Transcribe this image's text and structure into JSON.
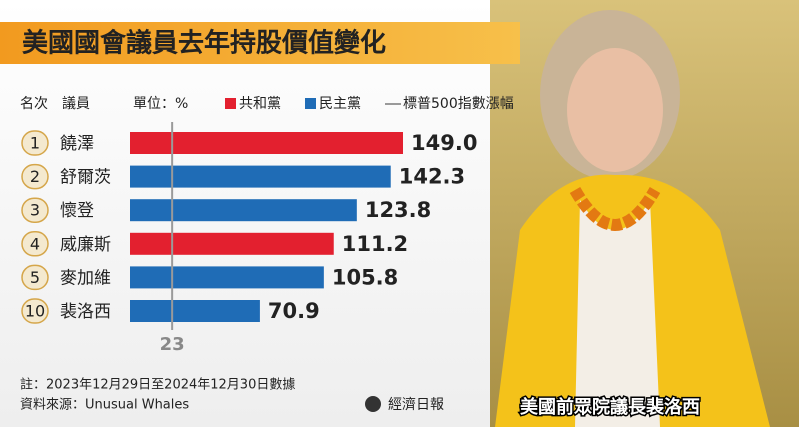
{
  "chart_data": {
    "type": "bar",
    "title": "美國國會議員去年持股價值變化",
    "rank_header": "名次",
    "name_header": "議員",
    "unit": "單位：%",
    "legend": [
      {
        "name": "共和黨",
        "color": "#e3202f"
      },
      {
        "name": "民主黨",
        "color": "#1f6cb6"
      }
    ],
    "reference_line": {
      "label": "標普500指數漲幅",
      "value": 23,
      "color": "#9a9a9a"
    },
    "ranks": [
      1,
      2,
      3,
      4,
      5,
      10
    ],
    "categories": [
      "饒澤",
      "舒爾茨",
      "懷登",
      "威廉斯",
      "麥加維",
      "裴洛西"
    ],
    "values": [
      149.0,
      142.3,
      123.8,
      111.2,
      105.8,
      70.9
    ],
    "value_labels": [
      "149.0",
      "142.3",
      "123.8",
      "111.2",
      "105.8",
      "70.9"
    ],
    "colors": [
      "#e3202f",
      "#1f6cb6",
      "#1f6cb6",
      "#e3202f",
      "#1f6cb6",
      "#1f6cb6"
    ],
    "note": "註：2023年12月29日至2024年12月30日數據",
    "source": "資料來源：Unusual Whales",
    "publisher": "經濟日報",
    "photo_caption": "美國前眾院議長裴洛西"
  }
}
